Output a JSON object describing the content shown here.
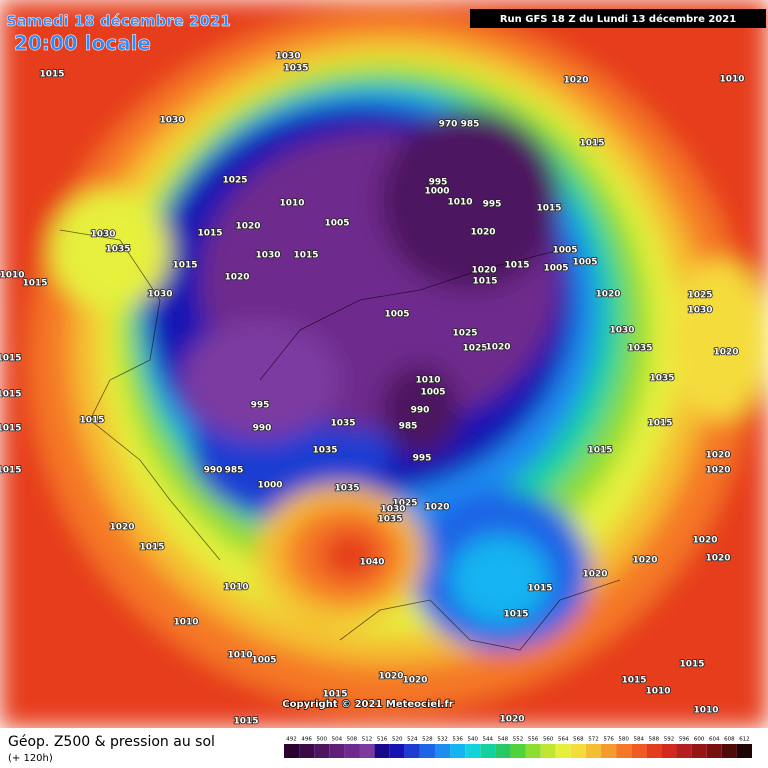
{
  "header": {
    "date": "Samedi 18 décembre 2021",
    "time": "20:00 locale",
    "run": "Run GFS 18 Z du Lundi 13 décembre 2021"
  },
  "footer": {
    "title": "Géop. Z500 & pression au sol",
    "lead": "(+ 120h)",
    "copyright": "Copyright © 2021 Meteociel.fr"
  },
  "legend": {
    "levels": [
      492,
      496,
      500,
      504,
      508,
      512,
      516,
      520,
      524,
      528,
      532,
      536,
      540,
      544,
      548,
      552,
      556,
      560,
      564,
      568,
      572,
      576,
      580,
      584,
      588,
      592,
      596,
      600,
      604,
      608,
      612
    ],
    "colors": [
      "#2a0030",
      "#3c0a48",
      "#4e1460",
      "#601e78",
      "#6e2a8c",
      "#7c3aa0",
      "#1a0a8a",
      "#1414b4",
      "#1e3cd2",
      "#1e64e6",
      "#1e8cf0",
      "#14b4f0",
      "#14d2dc",
      "#14d2a0",
      "#28c864",
      "#50d23c",
      "#8cdc32",
      "#bee632",
      "#e6f03c",
      "#f5dc3c",
      "#f5be32",
      "#f59b2d",
      "#f57828",
      "#f05a23",
      "#e63c1e",
      "#d2281e",
      "#b41e1e",
      "#961414",
      "#781010",
      "#500a0a",
      "#1e0505"
    ]
  },
  "pressure_labels": [
    1015,
    1030,
    1030,
    1035,
    1025,
    1010,
    1015,
    1020,
    1005,
    1030,
    1035,
    1015,
    1020,
    1030,
    1015,
    1030,
    1010,
    1015,
    1020,
    1010,
    1015,
    995,
    1000,
    1010,
    995,
    1015,
    1020,
    1005,
    1020,
    1015,
    1015,
    1005,
    1005,
    1005,
    1020,
    1030,
    1025,
    1025,
    1020,
    1035,
    1010,
    1005,
    990,
    985,
    995,
    995,
    990,
    1035,
    1035,
    990,
    985,
    1000,
    1035,
    1025,
    1030,
    1020,
    1035,
    1040,
    1015,
    1015,
    1015,
    1020,
    1020,
    1015,
    1020,
    1020,
    1015,
    1015,
    1010,
    1010,
    1010,
    1005,
    1020,
    1020,
    1015,
    1015,
    1015,
    1010,
    1010,
    1020,
    1015,
    1025,
    1030,
    1020,
    1015,
    1015,
    1015,
    1015,
    1020,
    1020,
    1020,
    1035,
    970,
    985
  ]
}
